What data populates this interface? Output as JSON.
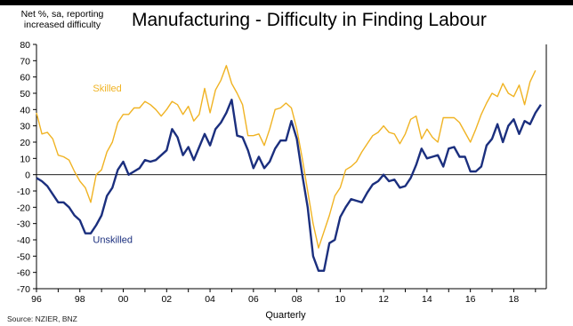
{
  "chart_data": {
    "type": "line",
    "title": "Manufacturing - Difficulty in Finding Labour",
    "ylabel": "Net %, sa, reporting increased difficulty",
    "xlabel": "Quarterly",
    "source": "Source: NZIER, BNZ",
    "ylim": [
      -70,
      80
    ],
    "yticks": [
      -70,
      -60,
      -50,
      -40,
      -30,
      -20,
      -10,
      0,
      10,
      20,
      30,
      40,
      50,
      60,
      70,
      80
    ],
    "xlim": [
      1996,
      2019.5
    ],
    "xticks": [
      {
        "value": 1996,
        "label": "96"
      },
      {
        "value": 1998,
        "label": "98"
      },
      {
        "value": 2000,
        "label": "00"
      },
      {
        "value": 2002,
        "label": "02"
      },
      {
        "value": 2004,
        "label": "04"
      },
      {
        "value": 2006,
        "label": "06"
      },
      {
        "value": 2008,
        "label": "08"
      },
      {
        "value": 2010,
        "label": "10"
      },
      {
        "value": 2012,
        "label": "12"
      },
      {
        "value": 2014,
        "label": "14"
      },
      {
        "value": 2016,
        "label": "16"
      },
      {
        "value": 2018,
        "label": "18"
      }
    ],
    "grid": false,
    "legend": "inline labels",
    "series": [
      {
        "name": "Skilled",
        "color": "#F0B323",
        "label_pos": [
          1998.6,
          51
        ],
        "points": [
          [
            1996.0,
            38
          ],
          [
            1996.25,
            25
          ],
          [
            1996.5,
            26
          ],
          [
            1996.75,
            22
          ],
          [
            1997.0,
            12
          ],
          [
            1997.25,
            11
          ],
          [
            1997.5,
            9
          ],
          [
            1997.75,
            2
          ],
          [
            1998.0,
            -4
          ],
          [
            1998.25,
            -8
          ],
          [
            1998.5,
            -17
          ],
          [
            1998.75,
            0
          ],
          [
            1999.0,
            3
          ],
          [
            1999.25,
            14
          ],
          [
            1999.5,
            20
          ],
          [
            1999.75,
            32
          ],
          [
            2000.0,
            37
          ],
          [
            2000.25,
            37
          ],
          [
            2000.5,
            41
          ],
          [
            2000.75,
            41
          ],
          [
            2001.0,
            45
          ],
          [
            2001.25,
            43
          ],
          [
            2001.5,
            40
          ],
          [
            2001.75,
            36
          ],
          [
            2002.0,
            40
          ],
          [
            2002.25,
            45
          ],
          [
            2002.5,
            43
          ],
          [
            2002.75,
            37
          ],
          [
            2003.0,
            42
          ],
          [
            2003.25,
            33
          ],
          [
            2003.5,
            37
          ],
          [
            2003.75,
            53
          ],
          [
            2004.0,
            38
          ],
          [
            2004.25,
            52
          ],
          [
            2004.5,
            58
          ],
          [
            2004.75,
            67
          ],
          [
            2005.0,
            56
          ],
          [
            2005.25,
            50
          ],
          [
            2005.5,
            43
          ],
          [
            2005.75,
            24
          ],
          [
            2006.0,
            24
          ],
          [
            2006.25,
            25
          ],
          [
            2006.5,
            18
          ],
          [
            2006.75,
            28
          ],
          [
            2007.0,
            40
          ],
          [
            2007.25,
            41
          ],
          [
            2007.5,
            44
          ],
          [
            2007.75,
            41
          ],
          [
            2008.0,
            28
          ],
          [
            2008.25,
            10
          ],
          [
            2008.5,
            -10
          ],
          [
            2008.75,
            -30
          ],
          [
            2009.0,
            -45
          ],
          [
            2009.25,
            -35
          ],
          [
            2009.5,
            -25
          ],
          [
            2009.75,
            -13
          ],
          [
            2010.0,
            -8
          ],
          [
            2010.25,
            3
          ],
          [
            2010.5,
            5
          ],
          [
            2010.75,
            8
          ],
          [
            2011.0,
            14
          ],
          [
            2011.25,
            19
          ],
          [
            2011.5,
            24
          ],
          [
            2011.75,
            26
          ],
          [
            2012.0,
            30
          ],
          [
            2012.25,
            26
          ],
          [
            2012.5,
            25
          ],
          [
            2012.75,
            19
          ],
          [
            2013.0,
            25
          ],
          [
            2013.25,
            34
          ],
          [
            2013.5,
            36
          ],
          [
            2013.75,
            22
          ],
          [
            2014.0,
            28
          ],
          [
            2014.25,
            23
          ],
          [
            2014.5,
            20
          ],
          [
            2014.75,
            35
          ],
          [
            2015.0,
            35
          ],
          [
            2015.25,
            35
          ],
          [
            2015.5,
            32
          ],
          [
            2015.75,
            26
          ],
          [
            2016.0,
            20
          ],
          [
            2016.25,
            28
          ],
          [
            2016.5,
            37
          ],
          [
            2016.75,
            44
          ],
          [
            2017.0,
            50
          ],
          [
            2017.25,
            48
          ],
          [
            2017.5,
            56
          ],
          [
            2017.75,
            50
          ],
          [
            2018.0,
            48
          ],
          [
            2018.25,
            55
          ],
          [
            2018.5,
            43
          ],
          [
            2018.75,
            57
          ],
          [
            2019.0,
            64
          ]
        ]
      },
      {
        "name": "Unskilled",
        "color": "#1B2F7E",
        "label_pos": [
          1998.6,
          -42
        ],
        "points": [
          [
            1996.0,
            -2
          ],
          [
            1996.25,
            -4
          ],
          [
            1996.5,
            -7
          ],
          [
            1996.75,
            -12
          ],
          [
            1997.0,
            -17
          ],
          [
            1997.25,
            -17
          ],
          [
            1997.5,
            -20
          ],
          [
            1997.75,
            -25
          ],
          [
            1998.0,
            -28
          ],
          [
            1998.25,
            -36
          ],
          [
            1998.5,
            -36
          ],
          [
            1998.75,
            -31
          ],
          [
            1999.0,
            -25
          ],
          [
            1999.25,
            -13
          ],
          [
            1999.5,
            -8
          ],
          [
            1999.75,
            3
          ],
          [
            2000.0,
            8
          ],
          [
            2000.25,
            0
          ],
          [
            2000.5,
            2
          ],
          [
            2000.75,
            4
          ],
          [
            2001.0,
            9
          ],
          [
            2001.25,
            8
          ],
          [
            2001.5,
            9
          ],
          [
            2001.75,
            12
          ],
          [
            2002.0,
            15
          ],
          [
            2002.25,
            28
          ],
          [
            2002.5,
            23
          ],
          [
            2002.75,
            12
          ],
          [
            2003.0,
            17
          ],
          [
            2003.25,
            9
          ],
          [
            2003.5,
            17
          ],
          [
            2003.75,
            25
          ],
          [
            2004.0,
            18
          ],
          [
            2004.25,
            28
          ],
          [
            2004.5,
            32
          ],
          [
            2004.75,
            38
          ],
          [
            2005.0,
            46
          ],
          [
            2005.25,
            24
          ],
          [
            2005.5,
            23
          ],
          [
            2005.75,
            15
          ],
          [
            2006.0,
            4
          ],
          [
            2006.25,
            11
          ],
          [
            2006.5,
            4
          ],
          [
            2006.75,
            8
          ],
          [
            2007.0,
            16
          ],
          [
            2007.25,
            21
          ],
          [
            2007.5,
            21
          ],
          [
            2007.75,
            33
          ],
          [
            2008.0,
            22
          ],
          [
            2008.25,
            0
          ],
          [
            2008.5,
            -20
          ],
          [
            2008.75,
            -50
          ],
          [
            2009.0,
            -59
          ],
          [
            2009.25,
            -59
          ],
          [
            2009.5,
            -42
          ],
          [
            2009.75,
            -40
          ],
          [
            2010.0,
            -26
          ],
          [
            2010.25,
            -20
          ],
          [
            2010.5,
            -15
          ],
          [
            2010.75,
            -16
          ],
          [
            2011.0,
            -17
          ],
          [
            2011.25,
            -11
          ],
          [
            2011.5,
            -6
          ],
          [
            2011.75,
            -4
          ],
          [
            2012.0,
            0
          ],
          [
            2012.25,
            -4
          ],
          [
            2012.5,
            -3
          ],
          [
            2012.75,
            -8
          ],
          [
            2013.0,
            -7
          ],
          [
            2013.25,
            -2
          ],
          [
            2013.5,
            6
          ],
          [
            2013.75,
            16
          ],
          [
            2014.0,
            10
          ],
          [
            2014.25,
            11
          ],
          [
            2014.5,
            12
          ],
          [
            2014.75,
            5
          ],
          [
            2015.0,
            16
          ],
          [
            2015.25,
            17
          ],
          [
            2015.5,
            11
          ],
          [
            2015.75,
            11
          ],
          [
            2016.0,
            2
          ],
          [
            2016.25,
            2
          ],
          [
            2016.5,
            5
          ],
          [
            2016.75,
            18
          ],
          [
            2017.0,
            22
          ],
          [
            2017.25,
            31
          ],
          [
            2017.5,
            20
          ],
          [
            2017.75,
            30
          ],
          [
            2018.0,
            34
          ],
          [
            2018.25,
            25
          ],
          [
            2018.5,
            33
          ],
          [
            2018.75,
            31
          ],
          [
            2019.0,
            38
          ],
          [
            2019.25,
            43
          ]
        ]
      }
    ]
  }
}
